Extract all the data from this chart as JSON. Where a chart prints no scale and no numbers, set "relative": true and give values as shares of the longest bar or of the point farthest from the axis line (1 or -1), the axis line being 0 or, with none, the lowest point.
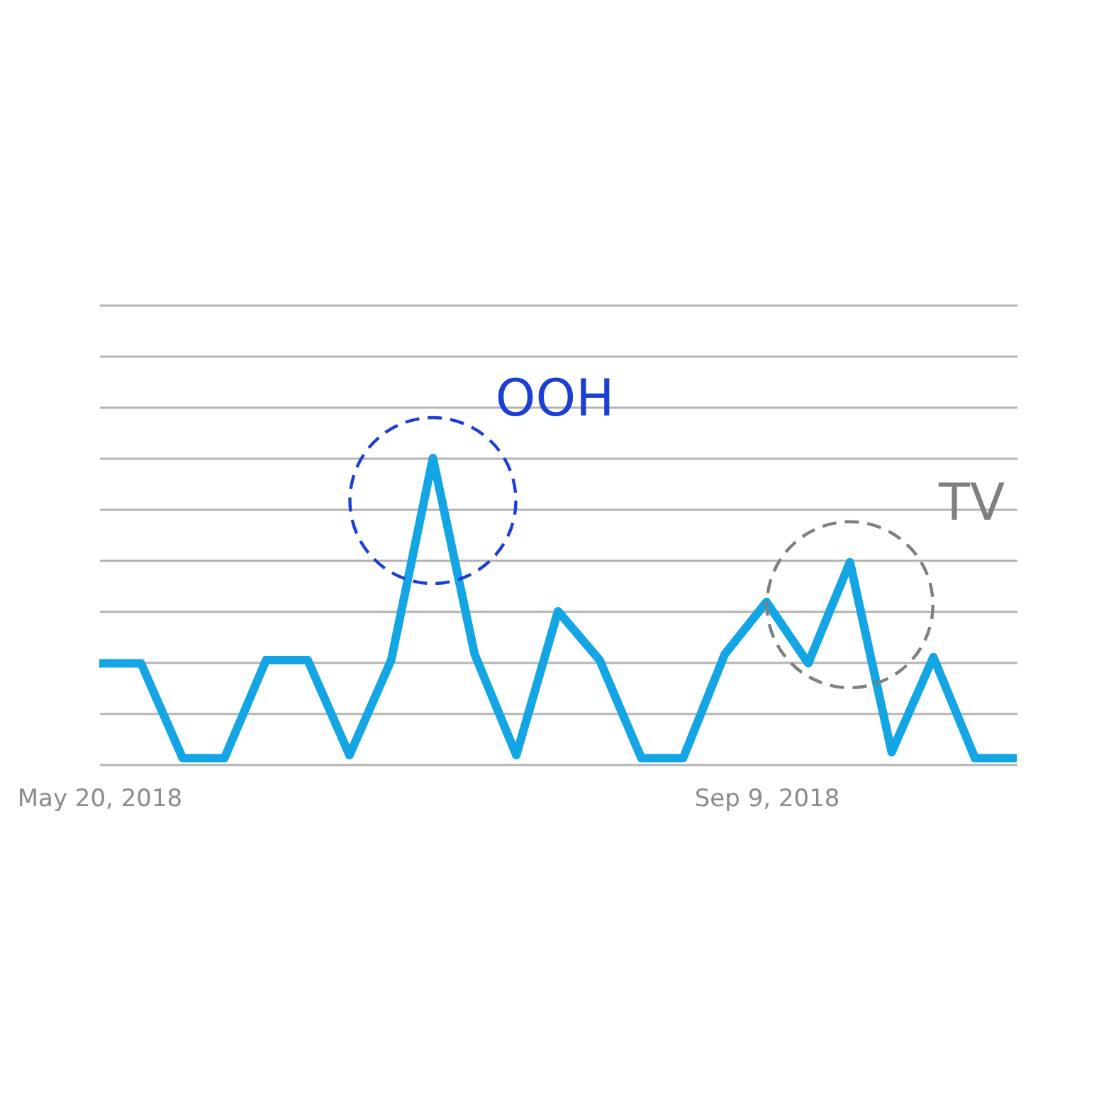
{
  "chart_data": {
    "type": "line",
    "x": [
      "2018-05-20",
      "2018-05-27",
      "2018-06-03",
      "2018-06-10",
      "2018-06-17",
      "2018-06-24",
      "2018-07-01",
      "2018-07-08",
      "2018-07-15",
      "2018-07-22",
      "2018-07-29",
      "2018-08-05",
      "2018-08-12",
      "2018-08-19",
      "2018-08-26",
      "2018-09-02",
      "2018-09-09",
      "2018-09-16",
      "2018-09-23",
      "2018-09-30",
      "2018-10-07",
      "2018-10-14",
      "2018-10-21"
    ],
    "xlim": [
      "2018-05-20",
      "2018-10-21"
    ],
    "xticks": [
      {
        "value": "2018-05-20",
        "label": "May 20, 2018"
      },
      {
        "value": "2018-09-09",
        "label": "Sep 9, 2018"
      }
    ],
    "series": [
      {
        "color": "#14a6e4",
        "values": [
          0.33,
          0.33,
          0.02,
          0.02,
          0.34,
          0.34,
          0.03,
          0.34,
          1,
          0.36,
          0.03,
          0.5,
          0.34,
          0.02,
          0.02,
          0.36,
          0.53,
          0.33,
          0.66,
          0.04,
          0.35,
          0.02,
          0.02
        ]
      }
    ],
    "relative": true,
    "grid": "y",
    "line_style": "solid",
    "annotations": [
      {
        "text": "OOH",
        "x": "2018-07-15",
        "y": 1
      },
      {
        "text": "TV",
        "x": "2018-09-23",
        "y": 0.66
      }
    ]
  }
}
